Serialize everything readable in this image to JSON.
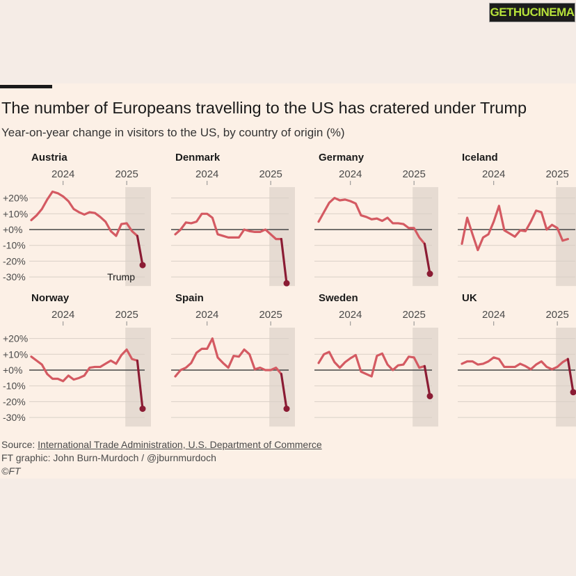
{
  "watermark": "GETHUCINEMA",
  "header": {
    "title": "The number of Europeans travelling to the US has cratered under Trump",
    "subtitle": "Year-on-year change in visitors to the US, by country of origin (%)"
  },
  "footer": {
    "source_label": "Source: ",
    "source_link": "International Trade Administration, U.S. Department of Commerce",
    "credit": "FT graphic: John Burn-Murdoch / @jburnmurdoch",
    "copyright": "©FT"
  },
  "colors": {
    "line": "#d45a62",
    "end_line": "#8b1c34",
    "end_dot": "#8b1c34",
    "shade": "#e6dbd2",
    "grid": "#d9cfc6",
    "zero": "#444444"
  },
  "chart_data": {
    "type": "line",
    "title": "The number of Europeans travelling to the US has cratered under Trump",
    "ylabel": "Year-on-year change in visitors to the US, by country of origin (%)",
    "ylim": [
      -34,
      26
    ],
    "y_ticks": [
      20,
      10,
      0,
      -10,
      -20,
      -30
    ],
    "y_tick_labels": [
      "+20%",
      "+10%",
      "+0%",
      "-10%",
      "-20%",
      "-30%"
    ],
    "x_tick_labels": [
      "2024",
      "2025"
    ],
    "x_tick_index": [
      6,
      18
    ],
    "shade_start_index": 18,
    "annotation": {
      "panel": "Austria",
      "text": "Trump"
    },
    "panels": [
      {
        "name": "Austria",
        "values": [
          6,
          9,
          13,
          19,
          24,
          23,
          21,
          18,
          13,
          11,
          9.5,
          11,
          10.5,
          8,
          5,
          -1,
          -4,
          3.5,
          4,
          -1,
          -4,
          -22.5
        ]
      },
      {
        "name": "Denmark",
        "values": [
          -3,
          0,
          4.5,
          4,
          5,
          10,
          10,
          7.5,
          -3,
          -4,
          -5,
          -5,
          -5,
          0,
          -1,
          -1.5,
          -1.5,
          0,
          -3,
          -6,
          -6,
          -34
        ]
      },
      {
        "name": "Germany",
        "values": [
          5,
          11,
          17,
          20,
          18.5,
          19,
          18,
          16.5,
          9,
          8,
          6.5,
          7,
          5.5,
          7.5,
          4,
          4,
          3.5,
          1,
          1,
          -5,
          -9,
          -28
        ]
      },
      {
        "name": "Iceland",
        "values": [
          -9,
          7.5,
          -3,
          -13,
          -5,
          -3,
          5,
          15,
          -0.5,
          -2.5,
          -4.5,
          -0.5,
          -1,
          5,
          12,
          11,
          0,
          3,
          1,
          -7,
          -6
        ]
      },
      {
        "name": "Norway",
        "values": [
          8.5,
          6,
          3.5,
          -2.5,
          -5.5,
          -5.5,
          -7,
          -3.5,
          -6,
          -5,
          -3.5,
          1.5,
          2,
          2,
          4,
          6,
          4,
          9.5,
          13,
          7,
          6,
          -24.5
        ]
      },
      {
        "name": "Spain",
        "values": [
          -4,
          0,
          1.5,
          4.5,
          11,
          13.5,
          13.5,
          20,
          8,
          4.5,
          1.5,
          9,
          8.5,
          13,
          10,
          0.5,
          1.5,
          0,
          0,
          1.5,
          -2.5,
          -24.5
        ]
      },
      {
        "name": "Sweden",
        "values": [
          4.5,
          10,
          11.5,
          5,
          1.5,
          5,
          7.5,
          9.5,
          -1,
          -2.5,
          -4,
          9,
          10.5,
          3.5,
          0,
          3,
          3.5,
          8.5,
          8,
          1.5,
          2.5,
          -16.5
        ]
      },
      {
        "name": "UK",
        "values": [
          4,
          5.5,
          5.5,
          3.5,
          4,
          5.5,
          8,
          7,
          2,
          2,
          2,
          4,
          2.5,
          0.5,
          3.5,
          5.5,
          2,
          0.5,
          2,
          5,
          7,
          -14
        ]
      }
    ]
  }
}
